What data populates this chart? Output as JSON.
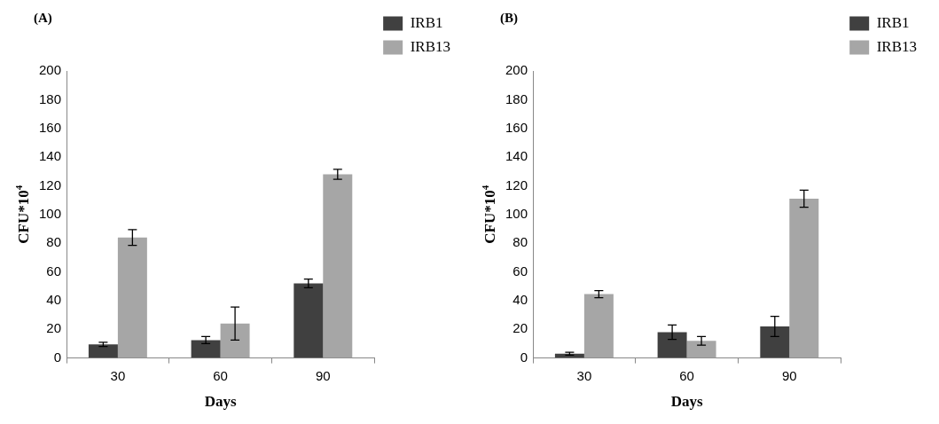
{
  "chart_data": [
    {
      "type": "bar",
      "title": "(A)",
      "xlabel": "Days",
      "ylabel": "CFU*10$^{4}$",
      "categories": [
        "30",
        "60",
        "90"
      ],
      "series": [
        {
          "name": "IRB1",
          "color": "#404040",
          "values": [
            9.5,
            12.5,
            52
          ],
          "errors": [
            1.5,
            2.5,
            3
          ]
        },
        {
          "name": "IRB13",
          "color": "#a6a6a6",
          "values": [
            84,
            24,
            128
          ],
          "errors": [
            5.5,
            11.5,
            3.5
          ]
        }
      ],
      "ylim": [
        0,
        200
      ],
      "yticks": [
        0,
        20,
        40,
        60,
        80,
        100,
        120,
        140,
        160,
        180,
        200
      ],
      "grid": false,
      "legend": "top right"
    },
    {
      "type": "bar",
      "title": "(B)",
      "xlabel": "Days",
      "ylabel": "CFU*10$^{4}$",
      "categories": [
        "30",
        "60",
        "90"
      ],
      "series": [
        {
          "name": "IRB1",
          "color": "#404040",
          "values": [
            3,
            18,
            22
          ],
          "errors": [
            1,
            5,
            7
          ]
        },
        {
          "name": "IRB13",
          "color": "#a6a6a6",
          "values": [
            44.5,
            12,
            111
          ],
          "errors": [
            2.5,
            3,
            6
          ]
        }
      ],
      "ylim": [
        0,
        200
      ],
      "yticks": [
        0,
        20,
        40,
        60,
        80,
        100,
        120,
        140,
        160,
        180,
        200
      ],
      "grid": false,
      "legend": "top right"
    }
  ]
}
